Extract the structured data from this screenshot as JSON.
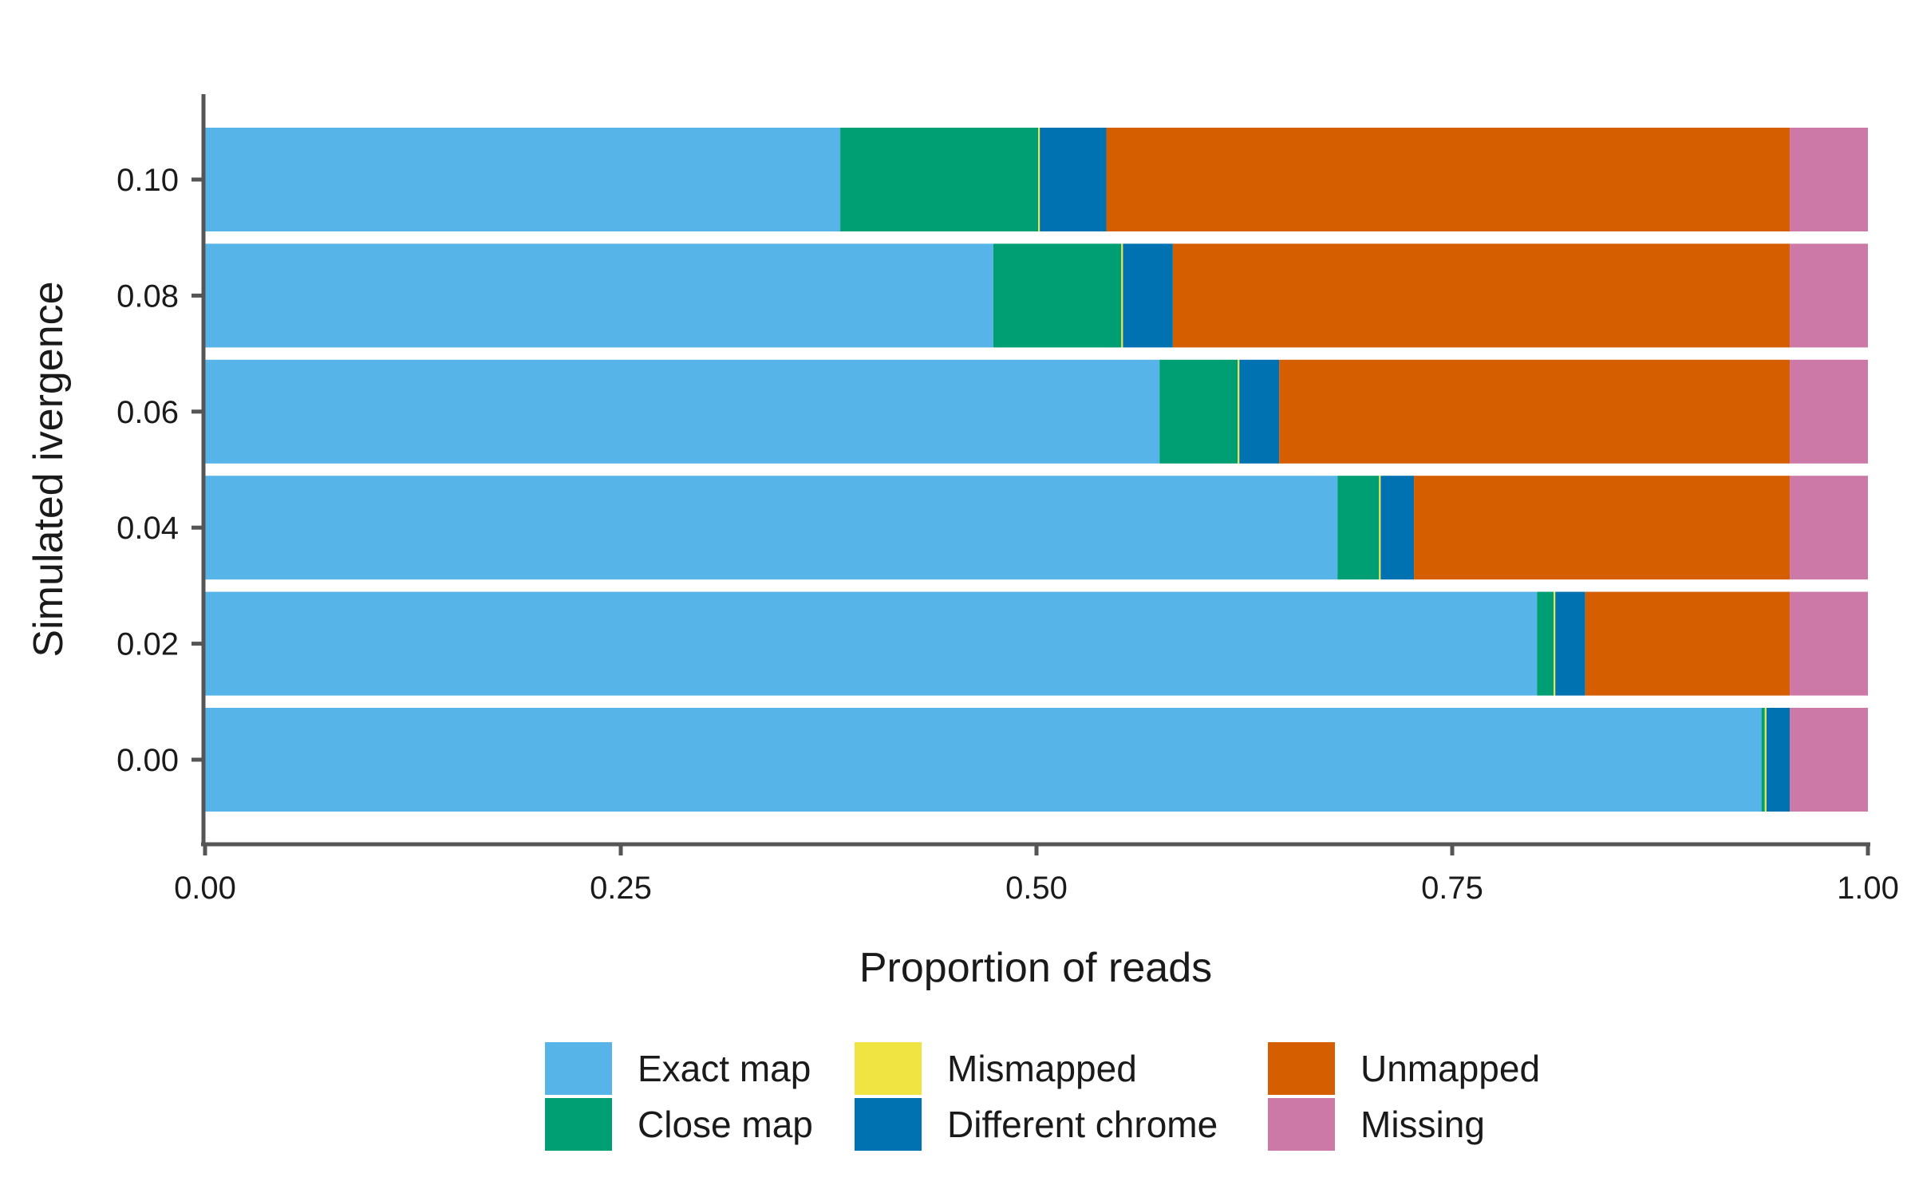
{
  "chart_data": {
    "type": "bar",
    "orientation": "horizontal",
    "stacked": true,
    "xlabel": "Proportion of reads",
    "ylabel": "Simulated ivergence",
    "xlim": [
      0,
      1
    ],
    "x_ticks": [
      "0.00",
      "0.25",
      "0.50",
      "0.75",
      "1.00"
    ],
    "x_tick_values": [
      0,
      0.25,
      0.5,
      0.75,
      1.0
    ],
    "categories": [
      "0.00",
      "0.02",
      "0.04",
      "0.06",
      "0.08",
      "0.10"
    ],
    "legend_position": "bottom",
    "series": [
      {
        "name": "Exact map",
        "color": "#56B4E9",
        "values": [
          0.936,
          0.801,
          0.681,
          0.574,
          0.474,
          0.382
        ]
      },
      {
        "name": "Close map",
        "color": "#009E73",
        "values": [
          0.002,
          0.01,
          0.025,
          0.047,
          0.077,
          0.119
        ]
      },
      {
        "name": "Mismapped",
        "color": "#F0E442",
        "values": [
          0.001,
          0.001,
          0.001,
          0.001,
          0.001,
          0.001
        ]
      },
      {
        "name": "Different chrome",
        "color": "#0072B2",
        "values": [
          0.014,
          0.018,
          0.02,
          0.024,
          0.03,
          0.04
        ]
      },
      {
        "name": "Unmapped",
        "color": "#D55E00",
        "values": [
          0.0,
          0.123,
          0.226,
          0.307,
          0.371,
          0.411
        ]
      },
      {
        "name": "Missing",
        "color": "#CC79A7",
        "values": [
          0.047,
          0.047,
          0.047,
          0.047,
          0.047,
          0.047
        ]
      }
    ],
    "legend_order": [
      "Exact map",
      "Close map",
      "Mismapped",
      "Different chrome",
      "Unmapped",
      "Missing"
    ]
  }
}
